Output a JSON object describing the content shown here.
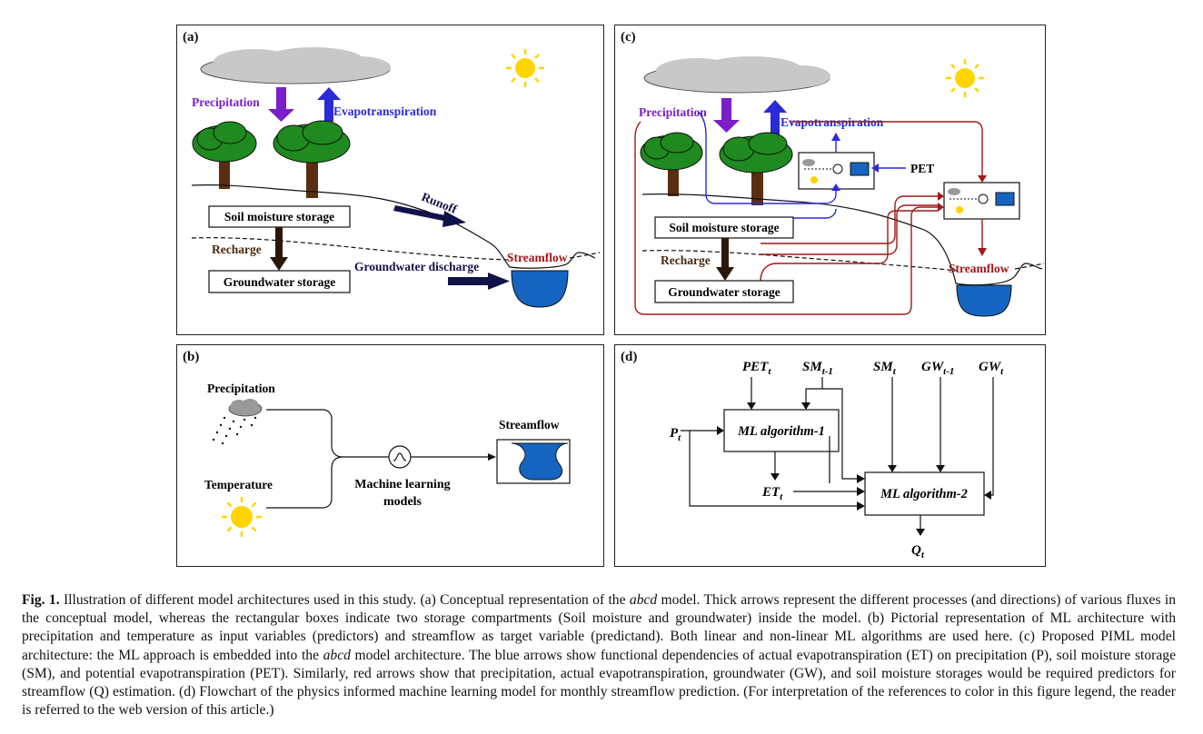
{
  "panels": {
    "a": {
      "label": "(a)",
      "precipitation": "Precipitation",
      "evapotranspiration": "Evapotranspiration",
      "runoff": "Runoff",
      "soil_moisture": "Soil moisture storage",
      "recharge": "Recharge",
      "groundwater": "Groundwater storage",
      "gw_discharge": "Groundwater discharge",
      "streamflow": "Streamflow"
    },
    "b": {
      "label": "(b)",
      "precipitation": "Precipitation",
      "temperature": "Temperature",
      "ml_line1": "Machine learning",
      "ml_line2": "models",
      "streamflow": "Streamflow"
    },
    "c": {
      "label": "(c)",
      "precipitation": "Precipitation",
      "evapotranspiration": "Evapotranspiration",
      "pet": "PET",
      "soil_moisture": "Soil moisture storage",
      "recharge": "Recharge",
      "groundwater": "Groundwater storage",
      "streamflow": "Streamflow"
    },
    "d": {
      "label": "(d)",
      "pet": "PET",
      "sm_prev": "SM",
      "sm": "SM",
      "gw_prev": "GW",
      "gw": "GW",
      "p": "P",
      "et": "ET",
      "q": "Q",
      "sub_t": "t",
      "sub_t1": "t-1",
      "ml1": "ML algorithm-1",
      "ml2": "ML algorithm-2"
    }
  },
  "caption": {
    "fig": "Fig. 1.",
    "s1": " Illustration of different model architectures used in this study. (a) Conceptual representation of the ",
    "abcd1": "abcd",
    "s2": " model. Thick arrows represent the different processes (and directions) of various fluxes in the conceptual model, whereas the rectangular boxes indicate two storage compartments (Soil moisture and groundwater) inside the model. (b) Pictorial representation of ML architecture with precipitation and temperature as input variables (predictors) and streamflow as target variable (predictand). Both linear and non-linear ML algorithms are used here. (c) Proposed PIML model architecture: the ML approach is embedded into the ",
    "abcd2": "abcd",
    "s3": " model architecture. The blue arrows show functional dependencies of actual evapotranspiration (ET) on precipitation (P), soil moisture storage (SM), and potential evapotranspiration (PET). Similarly, red arrows show that precipitation, actual evapotranspiration, groundwater (GW), and soil moisture storages would be required predictors for streamflow (Q) estimation. (d) Flowchart of the physics informed machine learning model for monthly streamflow prediction. (For interpretation of the references to color in this figure legend, the reader is referred to the web version of this article.)"
  },
  "colors": {
    "purple": "#7a1fc9",
    "blue": "#2a2ad8",
    "navy": "#12124a",
    "darkred": "#a01818",
    "water": "#1565c0",
    "tree": "#1f8a1f",
    "trunk": "#5a2e10",
    "sun": "#ffd400"
  }
}
